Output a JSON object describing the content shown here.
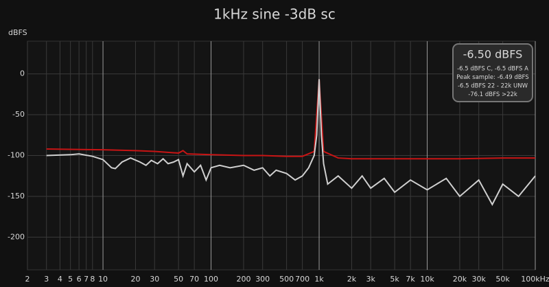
{
  "chart_data": {
    "type": "line",
    "title": "1kHz sine -3dB sc",
    "y_label": "dBFS",
    "log_x": true,
    "grid": true,
    "xlim": [
      2,
      100000
    ],
    "ylim": [
      -240,
      40
    ],
    "xticks": [
      2,
      3,
      4,
      5,
      6,
      7,
      8,
      10,
      20,
      30,
      50,
      70,
      100,
      200,
      300,
      500,
      700,
      {
        "value": 1000,
        "label": "1k"
      },
      {
        "value": 2000,
        "label": "2k"
      },
      {
        "value": 3000,
        "label": "3k"
      },
      {
        "value": 5000,
        "label": "5k"
      },
      {
        "value": 7000,
        "label": "7k"
      },
      {
        "value": 10000,
        "label": "10k"
      },
      {
        "value": 20000,
        "label": "20k"
      },
      {
        "value": 30000,
        "label": "30k"
      },
      {
        "value": 50000,
        "label": "50k"
      },
      {
        "value": 100000,
        "label": "100kHz"
      }
    ],
    "yticks": [
      0,
      -50,
      -100,
      -150,
      -200
    ],
    "series": [
      {
        "color": "#c81414",
        "x": [
          3,
          10,
          20,
          30,
          50,
          55,
          60,
          100,
          200,
          300,
          500,
          700,
          900,
          1000,
          1100,
          1500,
          2000,
          5000,
          10000,
          20000,
          50000,
          100000
        ],
        "values": [
          -92,
          -93,
          -94,
          -95,
          -97,
          -94,
          -98,
          -99,
          -100,
          -100,
          -101,
          -101,
          -95,
          -6.5,
          -95,
          -103,
          -104,
          -104,
          -104,
          -104,
          -103,
          -103
        ]
      },
      {
        "color": "#d0d0d0",
        "x": [
          3,
          5,
          6,
          8,
          10,
          12,
          13,
          15,
          18,
          22,
          25,
          28,
          32,
          36,
          40,
          45,
          50,
          55,
          60,
          70,
          80,
          90,
          100,
          120,
          150,
          200,
          250,
          300,
          350,
          400,
          500,
          600,
          700,
          800,
          900,
          950,
          1000,
          1050,
          1100,
          1200,
          1500,
          2000,
          2500,
          3000,
          4000,
          5000,
          7000,
          10000,
          15000,
          20000,
          30000,
          40000,
          50000,
          70000,
          100000
        ],
        "values": [
          -100,
          -99,
          -98,
          -101,
          -105,
          -115,
          -116,
          -108,
          -103,
          -108,
          -112,
          -106,
          -110,
          -104,
          -110,
          -108,
          -105,
          -125,
          -110,
          -120,
          -112,
          -130,
          -115,
          -112,
          -115,
          -112,
          -118,
          -115,
          -125,
          -118,
          -122,
          -130,
          -125,
          -115,
          -100,
          -75,
          -6.5,
          -75,
          -110,
          -135,
          -125,
          -140,
          -125,
          -140,
          -128,
          -145,
          -130,
          -142,
          -128,
          -150,
          -130,
          -160,
          -135,
          -150,
          -125
        ]
      }
    ],
    "readout": {
      "main": "-6.50 dBFS",
      "lines": [
        "-6.5 dBFS C, -6.5 dBFS A",
        "Peak sample: -6.49 dBFS",
        "-6.5 dBFS 22 - 22k UNW",
        "-76.1 dBFS >22k"
      ]
    }
  }
}
